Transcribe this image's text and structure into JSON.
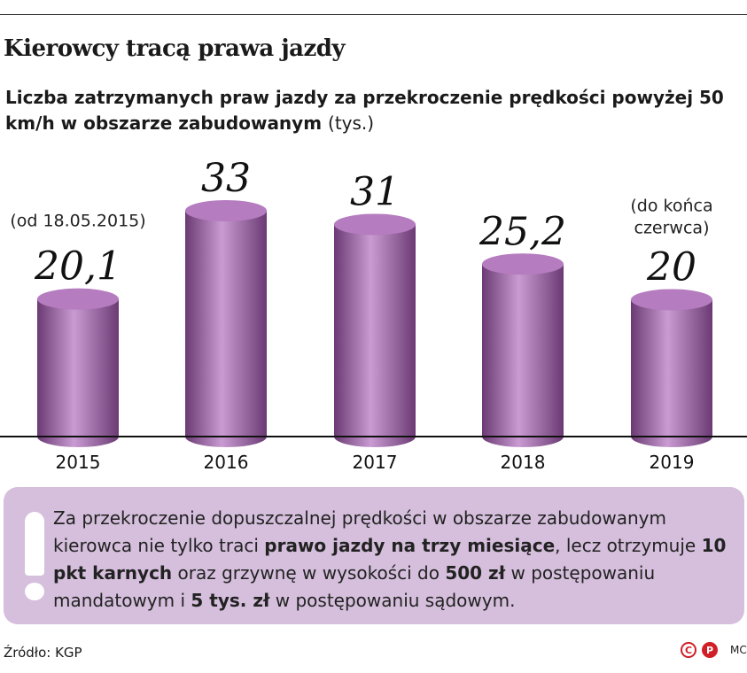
{
  "title": "Kierowcy tracą prawa jazdy",
  "subtitle": "Liczba zatrzymanych praw jazdy za przekroczenie prędkości powyżej 50 km/h w obszarze zabudowanym",
  "subtitle_unit": "(tys.)",
  "chart_data": {
    "type": "bar",
    "style": "3d-cylinder",
    "categories": [
      "2015",
      "2016",
      "2017",
      "2018",
      "2019"
    ],
    "values": [
      20.1,
      33,
      31,
      25.2,
      20
    ],
    "value_labels": [
      "20,1",
      "33",
      "31",
      "25,2",
      "20"
    ],
    "annotations": [
      "(od 18.05.2015)",
      "",
      "",
      "",
      "(do końca czerwca)"
    ],
    "ylim": [
      0,
      33
    ],
    "colors": {
      "bar": "#9b5fa6",
      "bar_light": "#c99bd2",
      "bar_dark": "#6b3a74",
      "top": "#b57cbf"
    }
  },
  "note": {
    "parts": [
      {
        "text": "Za przekroczenie dopuszczalnej prędkości w obszarze zabudowanym kierowca nie tylko traci ",
        "bold": false
      },
      {
        "text": "prawo jazdy na trzy miesiące",
        "bold": true
      },
      {
        "text": ", lecz otrzymuje ",
        "bold": false
      },
      {
        "text": "10 pkt karnych",
        "bold": true
      },
      {
        "text": " oraz grzywnę w wysokości do ",
        "bold": false
      },
      {
        "text": "500 zł",
        "bold": true
      },
      {
        "text": " w postępowaniu mandatowym i ",
        "bold": false
      },
      {
        "text": "5 tys. zł",
        "bold": true
      },
      {
        "text": " w postępowaniu sądowym.",
        "bold": false
      }
    ]
  },
  "source": "Źródło: KGP",
  "logo": {
    "left": "C",
    "right": "P"
  },
  "author": "MC"
}
